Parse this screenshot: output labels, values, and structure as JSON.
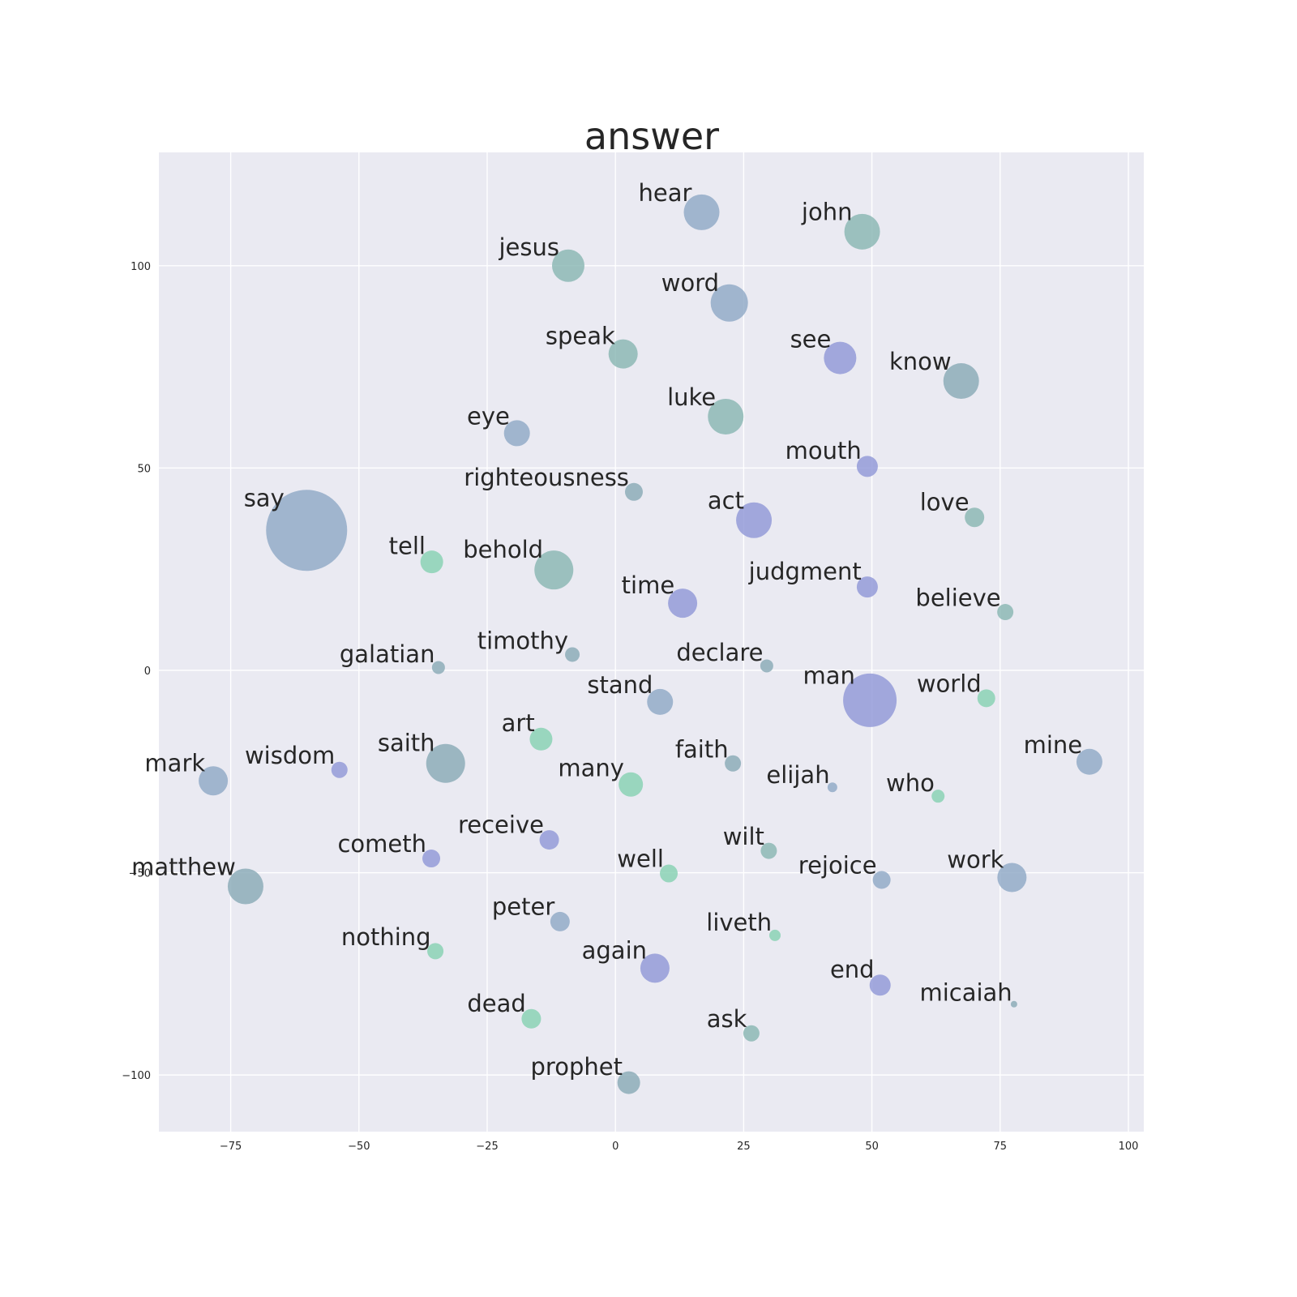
{
  "chart_data": {
    "type": "scatter",
    "title": "answer",
    "xlabel": "",
    "ylabel": "",
    "xlim": [
      -89,
      103
    ],
    "ylim": [
      -114,
      128
    ],
    "xticks": [
      -75,
      -50,
      -25,
      0,
      25,
      50,
      75,
      100
    ],
    "yticks": [
      -100,
      -50,
      0,
      50,
      100
    ],
    "xtick_labels": [
      "−75",
      "−50",
      "−25",
      "0",
      "25",
      "50",
      "75",
      "100"
    ],
    "ytick_labels": [
      "−100",
      "−50",
      "0",
      "50",
      "100"
    ],
    "grid": true,
    "background": "#eaeaf2",
    "palette": {
      "blue": "#8aa5c4",
      "teal": "#84b3b0",
      "green": "#82d0b0",
      "purple": "#8c93d6",
      "slate": "#84a6b4"
    },
    "points": [
      {
        "label": "hear",
        "x": 16.8,
        "y": 113.2,
        "size": 22,
        "color": "blue"
      },
      {
        "label": "john",
        "x": 48.1,
        "y": 108.4,
        "size": 22,
        "color": "teal"
      },
      {
        "label": "jesus",
        "x": -9.2,
        "y": 100.0,
        "size": 20,
        "color": "teal"
      },
      {
        "label": "word",
        "x": 22.2,
        "y": 90.8,
        "size": 23,
        "color": "blue"
      },
      {
        "label": "speak",
        "x": 1.5,
        "y": 78.2,
        "size": 18,
        "color": "teal"
      },
      {
        "label": "see",
        "x": 43.8,
        "y": 77.2,
        "size": 20,
        "color": "purple"
      },
      {
        "label": "know",
        "x": 67.4,
        "y": 71.5,
        "size": 22,
        "color": "slate"
      },
      {
        "label": "luke",
        "x": 21.5,
        "y": 62.7,
        "size": 22,
        "color": "teal"
      },
      {
        "label": "eye",
        "x": -19.2,
        "y": 58.6,
        "size": 16,
        "color": "blue"
      },
      {
        "label": "mouth",
        "x": 49.1,
        "y": 50.4,
        "size": 13,
        "color": "purple"
      },
      {
        "label": "righteousness",
        "x": 3.6,
        "y": 44.1,
        "size": 11,
        "color": "slate"
      },
      {
        "label": "love",
        "x": 70.0,
        "y": 37.8,
        "size": 12,
        "color": "teal"
      },
      {
        "label": "act",
        "x": 27.0,
        "y": 37.1,
        "size": 22,
        "color": "purple"
      },
      {
        "label": "say",
        "x": -60.2,
        "y": 34.6,
        "size": 50,
        "color": "blue"
      },
      {
        "label": "tell",
        "x": -35.8,
        "y": 26.8,
        "size": 14,
        "color": "green"
      },
      {
        "label": "behold",
        "x": -12.0,
        "y": 24.8,
        "size": 24,
        "color": "teal"
      },
      {
        "label": "judgment",
        "x": 49.1,
        "y": 20.6,
        "size": 13,
        "color": "purple"
      },
      {
        "label": "time",
        "x": 13.1,
        "y": 16.6,
        "size": 18,
        "color": "purple"
      },
      {
        "label": "believe",
        "x": 76.0,
        "y": 14.4,
        "size": 10,
        "color": "teal"
      },
      {
        "label": "timothy",
        "x": -8.4,
        "y": 3.9,
        "size": 9,
        "color": "slate"
      },
      {
        "label": "galatian",
        "x": -34.5,
        "y": 0.7,
        "size": 8,
        "color": "slate"
      },
      {
        "label": "declare",
        "x": 29.5,
        "y": 1.1,
        "size": 8,
        "color": "slate"
      },
      {
        "label": "man",
        "x": 49.6,
        "y": -7.4,
        "size": 33,
        "color": "purple"
      },
      {
        "label": "stand",
        "x": 8.7,
        "y": -7.8,
        "size": 16,
        "color": "blue"
      },
      {
        "label": "world",
        "x": 72.3,
        "y": -6.9,
        "size": 11,
        "color": "green"
      },
      {
        "label": "art",
        "x": -14.5,
        "y": -17.0,
        "size": 14,
        "color": "green"
      },
      {
        "label": "mine",
        "x": 92.4,
        "y": -22.6,
        "size": 16,
        "color": "blue"
      },
      {
        "label": "faith",
        "x": 22.9,
        "y": -23.0,
        "size": 10,
        "color": "slate"
      },
      {
        "label": "saith",
        "x": -33.1,
        "y": -23.0,
        "size": 24,
        "color": "slate"
      },
      {
        "label": "wisdom",
        "x": -53.8,
        "y": -24.6,
        "size": 10,
        "color": "purple"
      },
      {
        "label": "mark",
        "x": -78.4,
        "y": -27.3,
        "size": 18,
        "color": "blue"
      },
      {
        "label": "many",
        "x": 3.0,
        "y": -28.2,
        "size": 15,
        "color": "green"
      },
      {
        "label": "elijah",
        "x": 42.3,
        "y": -28.9,
        "size": 6,
        "color": "blue"
      },
      {
        "label": "who",
        "x": 62.9,
        "y": -31.1,
        "size": 8,
        "color": "green"
      },
      {
        "label": "receive",
        "x": -12.9,
        "y": -41.9,
        "size": 12,
        "color": "purple"
      },
      {
        "label": "cometh",
        "x": -35.9,
        "y": -46.5,
        "size": 11,
        "color": "purple"
      },
      {
        "label": "wilt",
        "x": 29.9,
        "y": -44.6,
        "size": 10,
        "color": "teal"
      },
      {
        "label": "well",
        "x": 10.4,
        "y": -50.2,
        "size": 11,
        "color": "green"
      },
      {
        "label": "matthew",
        "x": -72.1,
        "y": -53.4,
        "size": 22,
        "color": "slate"
      },
      {
        "label": "rejoice",
        "x": 51.9,
        "y": -51.8,
        "size": 11,
        "color": "blue"
      },
      {
        "label": "work",
        "x": 77.3,
        "y": -51.2,
        "size": 18,
        "color": "blue"
      },
      {
        "label": "peter",
        "x": -10.8,
        "y": -62.1,
        "size": 12,
        "color": "blue"
      },
      {
        "label": "liveth",
        "x": 31.1,
        "y": -65.5,
        "size": 7,
        "color": "green"
      },
      {
        "label": "nothing",
        "x": -35.1,
        "y": -69.4,
        "size": 10,
        "color": "green"
      },
      {
        "label": "again",
        "x": 7.7,
        "y": -73.6,
        "size": 18,
        "color": "purple"
      },
      {
        "label": "end",
        "x": 51.6,
        "y": -77.8,
        "size": 13,
        "color": "purple"
      },
      {
        "label": "micaiah",
        "x": 77.7,
        "y": -82.5,
        "size": 4,
        "color": "slate"
      },
      {
        "label": "dead",
        "x": -16.4,
        "y": -86.1,
        "size": 12,
        "color": "green"
      },
      {
        "label": "ask",
        "x": 26.5,
        "y": -89.7,
        "size": 10,
        "color": "teal"
      },
      {
        "label": "prophet",
        "x": 2.6,
        "y": -101.9,
        "size": 14,
        "color": "slate"
      }
    ]
  }
}
